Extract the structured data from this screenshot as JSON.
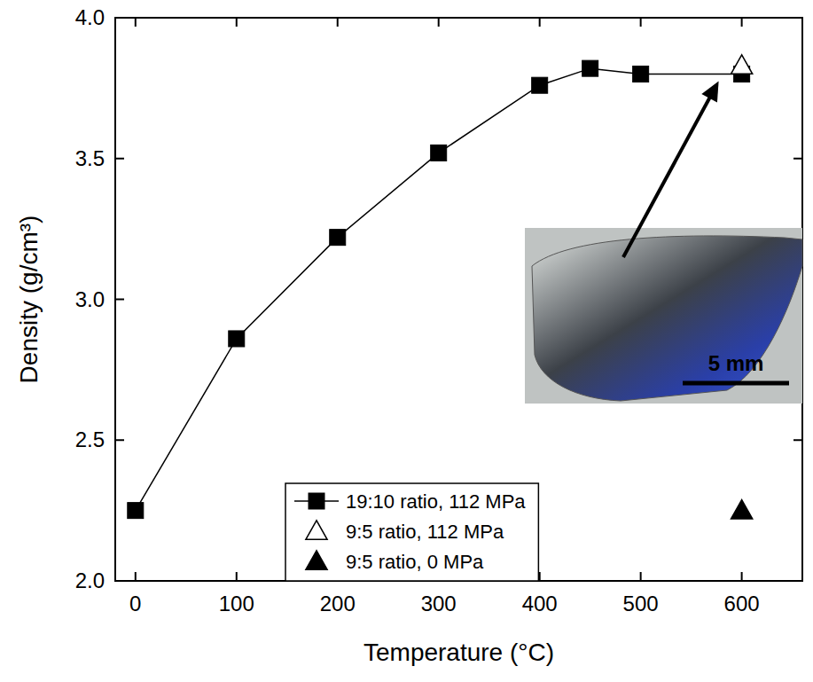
{
  "chart_data": {
    "type": "line",
    "x_label": "Temperature (°C)",
    "y_label": "Density (g/cm³)",
    "xlim": [
      -20,
      660
    ],
    "xticks": [
      0,
      100,
      200,
      300,
      400,
      500,
      600
    ],
    "ylim": [
      2,
      4
    ],
    "yticks": [
      {
        "value": 2,
        "label": "2.0"
      },
      2.5,
      {
        "value": 3,
        "label": "3.0"
      },
      3.5,
      {
        "value": 4,
        "label": "4.0"
      }
    ],
    "legend": "bottom",
    "annotations": [
      {
        "text": "5 mm"
      }
    ],
    "series": [
      {
        "name": "19:10 ratio, 112 MPa",
        "type": "line",
        "color": "#000000",
        "marker": "square",
        "line_style": "solid",
        "x": [
          0,
          100,
          200,
          300,
          400,
          450,
          500,
          600
        ],
        "values": [
          2.25,
          2.86,
          3.22,
          3.52,
          3.76,
          3.82,
          3.8,
          3.8
        ]
      },
      {
        "name": "9:5 ratio, 112 MPa",
        "type": "scatter",
        "color": "#000000",
        "marker": "triangle-open",
        "x": [
          600
        ],
        "values": [
          3.83
        ]
      },
      {
        "name": "9:5 ratio, 0 MPa",
        "type": "scatter",
        "color": "#000000",
        "marker": "triangle",
        "x": [
          600
        ],
        "values": [
          2.25
        ]
      }
    ]
  }
}
